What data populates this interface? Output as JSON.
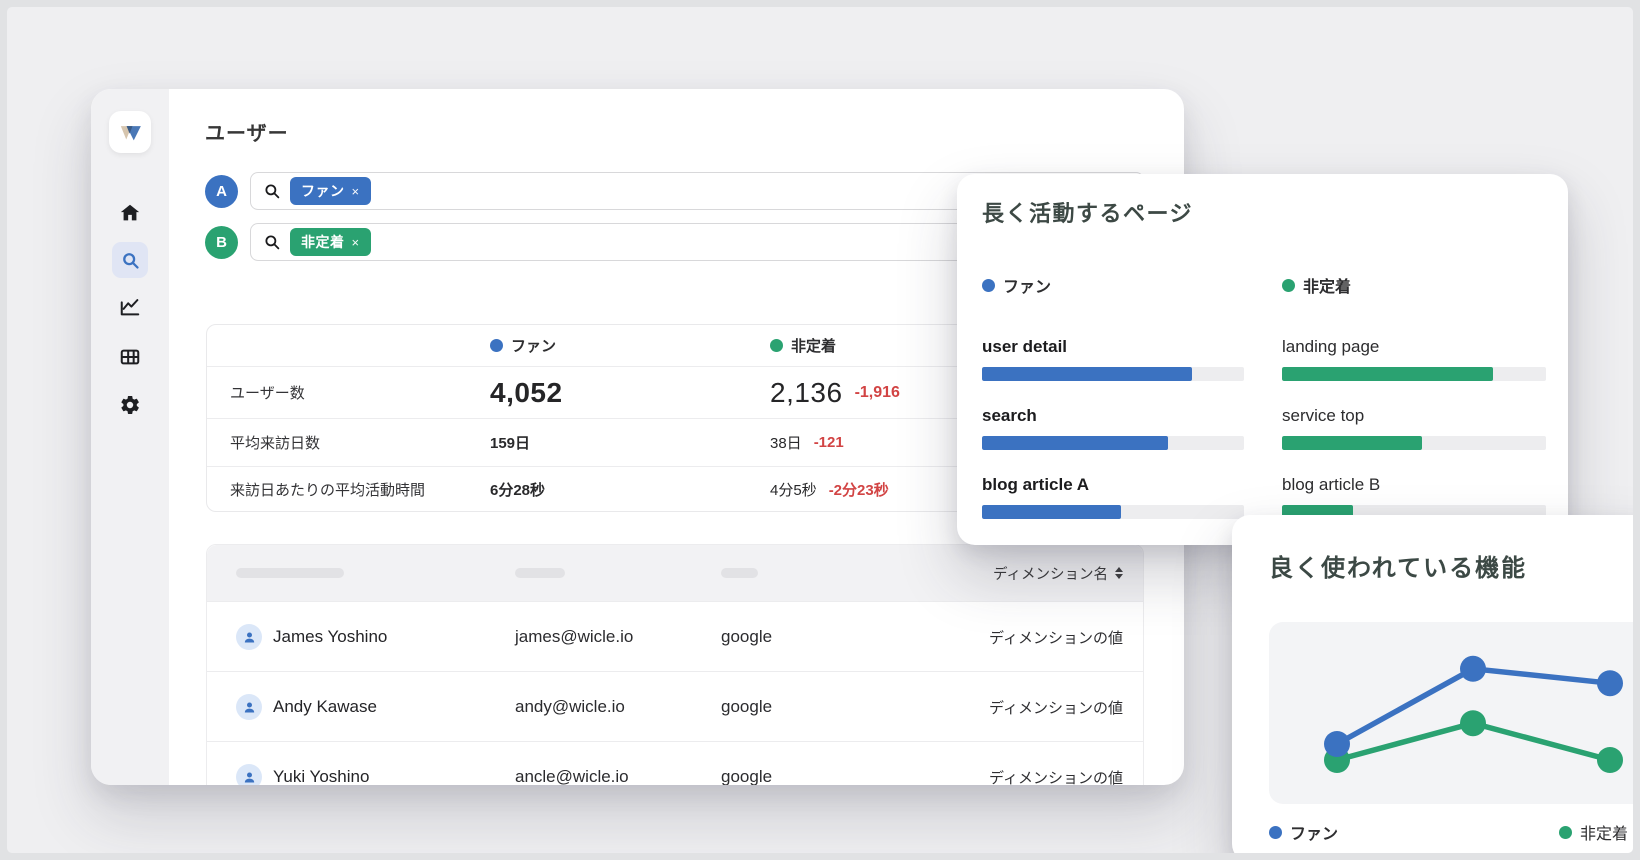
{
  "app": {
    "page_title": "ユーザー"
  },
  "segments": {
    "a": {
      "badge": "A",
      "label": "ファン",
      "color": "#3b72c1"
    },
    "b": {
      "badge": "B",
      "label": "非定着",
      "color": "#2aa271"
    }
  },
  "colors": {
    "accent_blue": "#3b72c1",
    "accent_green": "#2aa271",
    "negative_red": "#d24444"
  },
  "sidebar": {
    "icons": [
      "home",
      "search",
      "line-chart",
      "table",
      "settings"
    ],
    "active": "search"
  },
  "filters": {
    "row_a": {
      "tag": "ファン",
      "remove": "×"
    },
    "row_b": {
      "tag": "非定着",
      "remove": "×"
    }
  },
  "comparison": {
    "rows": [
      {
        "metric": "ユーザー数",
        "a": "4,052",
        "b": "2,136",
        "delta": "-1,916"
      },
      {
        "metric": "平均来訪日数",
        "a": "159日",
        "b": "38日",
        "delta": "-121"
      },
      {
        "metric": "来訪日あたりの平均活動時間",
        "a": "6分28秒",
        "b": "4分5秒",
        "delta": "-2分23秒"
      }
    ]
  },
  "users_table": {
    "dimension_header": "ディメンション名",
    "rows": [
      {
        "name": "James Yoshino",
        "email": "james@wicle.io",
        "source": "google",
        "dimension": "ディメンションの値"
      },
      {
        "name": "Andy Kawase",
        "email": "andy@wicle.io",
        "source": "google",
        "dimension": "ディメンションの値"
      },
      {
        "name": "Yuki Yoshino",
        "email": "ancle@wicle.io",
        "source": "google",
        "dimension": "ディメンションの値"
      }
    ]
  },
  "cards": {
    "pages": {
      "title": "長く活動するページ"
    },
    "features": {
      "title": "良く使われている機能"
    }
  },
  "chart_data": [
    {
      "type": "bar",
      "title": "長く活動するページ",
      "orientation": "horizontal",
      "unit": "percent of track",
      "legend_position": "top",
      "series": [
        {
          "name": "ファン",
          "color": "#3b72c1",
          "items": [
            {
              "label": "user detail",
              "value": 80
            },
            {
              "label": "search",
              "value": 71
            },
            {
              "label": "blog article A",
              "value": 53
            }
          ]
        },
        {
          "name": "非定着",
          "color": "#2aa271",
          "items": [
            {
              "label": "landing page",
              "value": 80
            },
            {
              "label": "service top",
              "value": 53
            },
            {
              "label": "blog article B",
              "value": 27
            }
          ]
        }
      ]
    },
    {
      "type": "line",
      "title": "良く使われている機能",
      "x": [
        1,
        2,
        3
      ],
      "axes_hidden": true,
      "grid": false,
      "legend_position": "bottom",
      "ylim": [
        0,
        100
      ],
      "series": [
        {
          "name": "ファン",
          "color": "#3b72c1",
          "values": [
            35,
            82,
            73
          ]
        },
        {
          "name": "非定着",
          "color": "#2aa271",
          "values": [
            25,
            48,
            25
          ]
        }
      ]
    }
  ]
}
